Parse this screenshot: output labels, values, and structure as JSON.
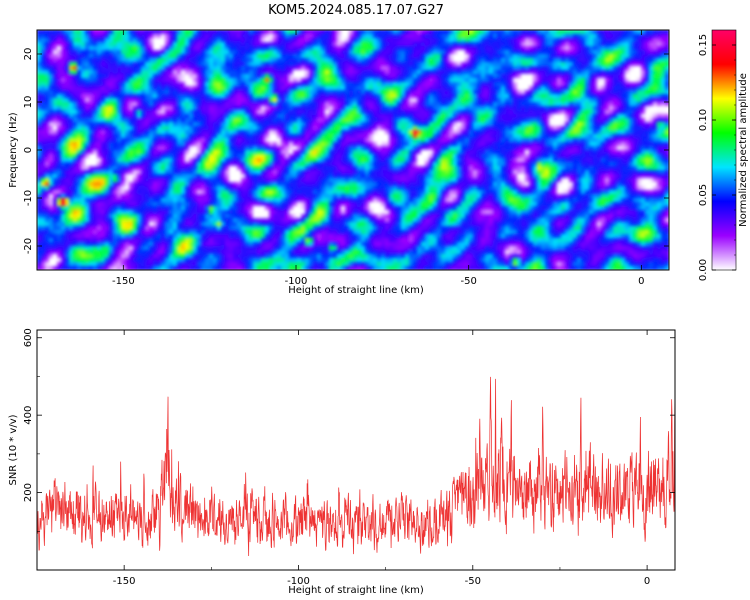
{
  "title": "KOM5.2024.085.17.07.G27",
  "chart_data": [
    {
      "type": "heatmap",
      "title": "",
      "xlabel": "Height of straight line (km)",
      "ylabel": "Frequency (Hz)",
      "xlim": [
        -175,
        8
      ],
      "ylim": [
        -25,
        25
      ],
      "x_ticks": [
        -150,
        -100,
        -50,
        0
      ],
      "y_ticks": [
        -20,
        -10,
        0,
        10,
        20
      ],
      "colorbar": {
        "label": "Normalized spectral amplitude",
        "range": [
          0,
          0.16
        ],
        "ticks": [
          "0.00",
          "0.05",
          "0.10",
          "0.15"
        ],
        "colors": [
          "#ffffff",
          "#9a00ff",
          "#0000ff",
          "#00e5ff",
          "#00ff00",
          "#ffff00",
          "#ff0000",
          "#ff0066"
        ]
      },
      "hotspots": [
        {
          "x": -168,
          "y": -10.5,
          "v": 0.15
        },
        {
          "x": -173,
          "y": -6.5,
          "v": 0.12
        },
        {
          "x": -66,
          "y": 4,
          "v": 0.15
        },
        {
          "x": -165,
          "y": 17.5,
          "v": 0.12
        },
        {
          "x": -109,
          "y": 15,
          "v": 0.11
        },
        {
          "x": -107,
          "y": 11,
          "v": 0.1
        },
        {
          "x": -30,
          "y": -3,
          "v": 0.1
        },
        {
          "x": -125,
          "y": -12,
          "v": 0.09
        },
        {
          "x": -123,
          "y": -15,
          "v": 0.09
        },
        {
          "x": -97,
          "y": -18.5,
          "v": 0.09
        },
        {
          "x": -90,
          "y": -20,
          "v": 0.08
        },
        {
          "x": -37,
          "y": -23,
          "v": 0.09
        },
        {
          "x": 5,
          "y": 5.5,
          "v": 0.08
        },
        {
          "x": -153,
          "y": -5.5,
          "v": 0.08
        },
        {
          "x": -146,
          "y": 8,
          "v": 0.07
        }
      ]
    },
    {
      "type": "line",
      "title": "",
      "xlabel": "Height of straight line (km)",
      "ylabel": "SNR (10 * v/v)",
      "xlim": [
        -175,
        8
      ],
      "ylim": [
        0,
        620
      ],
      "x_ticks": [
        -150,
        -100,
        -50,
        0
      ],
      "y_ticks": [
        200,
        400,
        600
      ],
      "color": "#ee3333",
      "series": [
        {
          "x": [
            -175,
            -165,
            -155,
            -145,
            -140,
            -138,
            -136,
            -130,
            -120,
            -110,
            -100,
            -90,
            -80,
            -70,
            -60,
            -55,
            -52,
            -48,
            -45,
            -43,
            -40,
            -35,
            -30,
            -25,
            -20,
            -15,
            -10,
            -5,
            0,
            4,
            8
          ],
          "y": [
            130,
            140,
            140,
            135,
            180,
            240,
            175,
            140,
            130,
            125,
            120,
            118,
            120,
            125,
            125,
            150,
            200,
            220,
            230,
            270,
            225,
            205,
            210,
            200,
            205,
            215,
            190,
            200,
            200,
            220,
            240
          ]
        }
      ],
      "peaks": [
        {
          "x": -43.5,
          "y": 615
        },
        {
          "x": -45,
          "y": 525
        },
        {
          "x": -137.5,
          "y": 495
        },
        {
          "x": 8,
          "y": 545
        },
        {
          "x": 7,
          "y": 495
        },
        {
          "x": -39,
          "y": 490
        },
        {
          "x": -30,
          "y": 490
        },
        {
          "x": -19,
          "y": 485
        },
        {
          "x": -48,
          "y": 450
        },
        {
          "x": -2,
          "y": 460
        }
      ]
    }
  ]
}
